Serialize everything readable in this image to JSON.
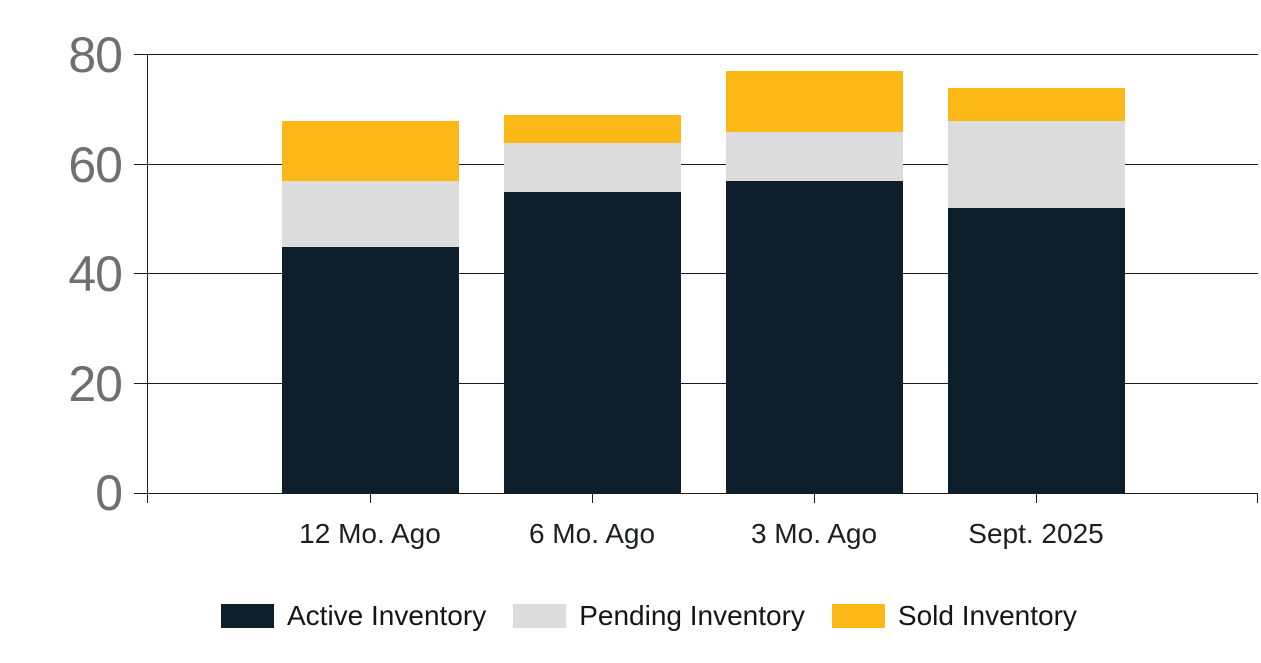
{
  "chart_data": {
    "type": "bar",
    "stacked": true,
    "title": "",
    "xlabel": "",
    "ylabel": "",
    "categories": [
      "12 Mo. Ago",
      "6 Mo. Ago",
      "3 Mo. Ago",
      "Sept. 2025"
    ],
    "series": [
      {
        "name": "Active Inventory",
        "color": "#0c1f2b",
        "values": [
          45,
          55,
          57,
          52
        ]
      },
      {
        "name": "Pending Inventory",
        "color": "#dcdcdc",
        "values": [
          12,
          9,
          9,
          16
        ]
      },
      {
        "name": "Sold Inventory",
        "color": "#fbb817",
        "values": [
          11,
          5,
          11,
          6
        ]
      }
    ],
    "stack_totals": [
      68,
      69,
      77,
      74
    ],
    "ylim": [
      0,
      80
    ],
    "yticks": [
      0,
      20,
      40,
      60,
      80
    ],
    "grid": "horizontal",
    "legend_position": "bottom-left"
  },
  "colors": {
    "background": "#ffffff",
    "gridline": "#1b1b1b",
    "y_tick_label": "#6e6f72",
    "x_tick_label": "#1d1e20",
    "legend_text": "#151517"
  }
}
